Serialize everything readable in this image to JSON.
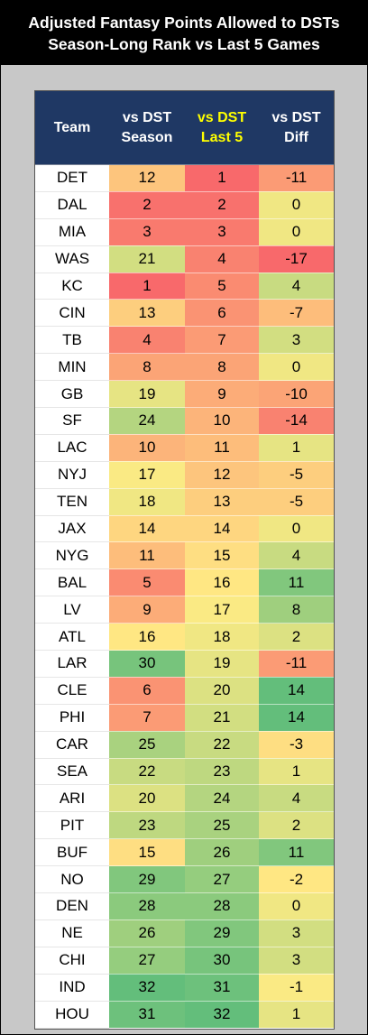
{
  "title": {
    "line1": "Adjusted Fantasy Points Allowed to DSTs",
    "line2": "Season-Long Rank vs Last 5 Games"
  },
  "colors": {
    "header_bg": "#1f3864",
    "header_text": "#ffffff",
    "header_highlight_text": "#ffff00",
    "scale_low": "#f8696b",
    "scale_mid": "#ffeb84",
    "scale_high": "#63be7b"
  },
  "chart_data": {
    "type": "table",
    "headers": [
      {
        "line1": "Team",
        "line2": ""
      },
      {
        "line1": "vs DST",
        "line2": "Season"
      },
      {
        "line1": "vs DST",
        "line2": "Last 5"
      },
      {
        "line1": "vs DST",
        "line2": "Diff"
      }
    ],
    "rows": [
      [
        "DET",
        12,
        1,
        -11
      ],
      [
        "DAL",
        2,
        2,
        0
      ],
      [
        "MIA",
        3,
        3,
        0
      ],
      [
        "WAS",
        21,
        4,
        -17
      ],
      [
        "KC",
        1,
        5,
        4
      ],
      [
        "CIN",
        13,
        6,
        -7
      ],
      [
        "TB",
        4,
        7,
        3
      ],
      [
        "MIN",
        8,
        8,
        0
      ],
      [
        "GB",
        19,
        9,
        -10
      ],
      [
        "SF",
        24,
        10,
        -14
      ],
      [
        "LAC",
        10,
        11,
        1
      ],
      [
        "NYJ",
        17,
        12,
        -5
      ],
      [
        "TEN",
        18,
        13,
        -5
      ],
      [
        "JAX",
        14,
        14,
        0
      ],
      [
        "NYG",
        11,
        15,
        4
      ],
      [
        "BAL",
        5,
        16,
        11
      ],
      [
        "LV",
        9,
        17,
        8
      ],
      [
        "ATL",
        16,
        18,
        2
      ],
      [
        "LAR",
        30,
        19,
        -11
      ],
      [
        "CLE",
        6,
        20,
        14
      ],
      [
        "PHI",
        7,
        21,
        14
      ],
      [
        "CAR",
        25,
        22,
        -3
      ],
      [
        "SEA",
        22,
        23,
        1
      ],
      [
        "ARI",
        20,
        24,
        4
      ],
      [
        "PIT",
        23,
        25,
        2
      ],
      [
        "BUF",
        15,
        26,
        11
      ],
      [
        "NO",
        29,
        27,
        -2
      ],
      [
        "DEN",
        28,
        28,
        0
      ],
      [
        "NE",
        26,
        29,
        3
      ],
      [
        "CHI",
        27,
        30,
        3
      ],
      [
        "IND",
        32,
        31,
        -1
      ],
      [
        "HOU",
        31,
        32,
        1
      ]
    ],
    "color_scales": {
      "season": [
        1,
        32
      ],
      "last5": [
        1,
        32
      ],
      "diff": [
        -17,
        14
      ]
    }
  }
}
